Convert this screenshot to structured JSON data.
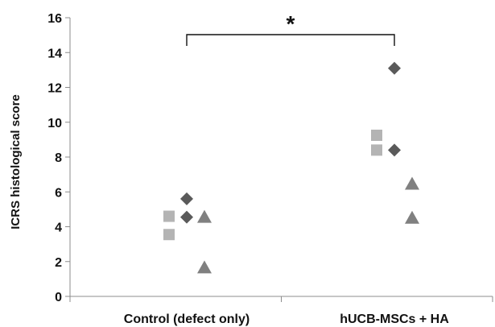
{
  "chart_data": {
    "type": "scatter",
    "ylabel": "ICRS histological score",
    "xlabel": "",
    "ylim": [
      0,
      16
    ],
    "yticks": [
      0,
      2,
      4,
      6,
      8,
      10,
      12,
      14,
      16
    ],
    "categories": [
      "Control (defect only)",
      "hUCB-MSCs + HA"
    ],
    "grid": false,
    "significance": {
      "label": "*",
      "between": [
        "Control (defect only)",
        "hUCB-MSCs + HA"
      ]
    },
    "colors": {
      "diamond": "#5a5a5a",
      "square": "#b4b4b4",
      "triangle": "#808080"
    },
    "points": [
      {
        "category": "Control (defect only)",
        "marker": "diamond",
        "y": 5.6
      },
      {
        "category": "Control (defect only)",
        "marker": "diamond",
        "y": 4.55
      },
      {
        "category": "Control (defect only)",
        "marker": "square",
        "y": 4.6
      },
      {
        "category": "Control (defect only)",
        "marker": "square",
        "y": 3.55
      },
      {
        "category": "Control (defect only)",
        "marker": "triangle",
        "y": 4.55
      },
      {
        "category": "Control (defect only)",
        "marker": "triangle",
        "y": 1.65
      },
      {
        "category": "hUCB-MSCs + HA",
        "marker": "diamond",
        "y": 13.1
      },
      {
        "category": "hUCB-MSCs + HA",
        "marker": "diamond",
        "y": 8.4
      },
      {
        "category": "hUCB-MSCs + HA",
        "marker": "square",
        "y": 9.25
      },
      {
        "category": "hUCB-MSCs + HA",
        "marker": "square",
        "y": 8.4
      },
      {
        "category": "hUCB-MSCs + HA",
        "marker": "triangle",
        "y": 6.45
      },
      {
        "category": "hUCB-MSCs + HA",
        "marker": "triangle",
        "y": 4.5
      }
    ]
  }
}
